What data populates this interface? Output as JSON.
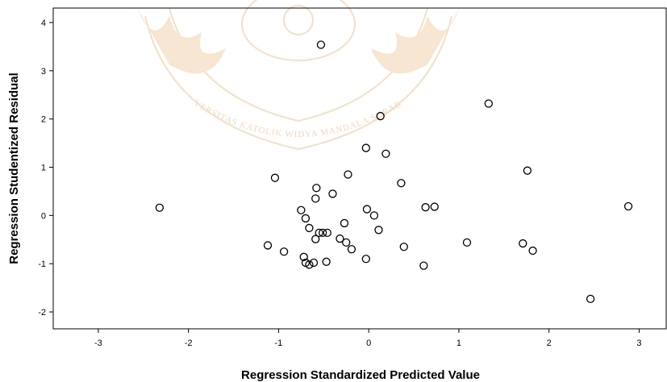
{
  "chart_data": {
    "type": "scatter",
    "title": "",
    "xlabel": "Regression Standardized Predicted Value",
    "ylabel": "Regression Studentized Residual",
    "xlim": [
      -3.5,
      3.3
    ],
    "ylim": [
      -2.35,
      4.3
    ],
    "x_ticks": [
      -3,
      -2,
      -1,
      0,
      1,
      2,
      3
    ],
    "y_ticks": [
      -2,
      -1,
      0,
      1,
      2,
      3,
      4
    ],
    "grid": false,
    "legend": "none",
    "marker": "open-circle",
    "watermark_text": "UNIVERSITAS KATOLIK WIDYA MANDALA SURABAYA",
    "points": [
      [
        -2.32,
        0.16
      ],
      [
        -1.12,
        -0.62
      ],
      [
        -1.04,
        0.78
      ],
      [
        -0.94,
        -0.75
      ],
      [
        -0.75,
        0.11
      ],
      [
        -0.72,
        -0.86
      ],
      [
        -0.7,
        -0.06
      ],
      [
        -0.7,
        -0.98
      ],
      [
        -0.66,
        -1.02
      ],
      [
        -0.66,
        -0.26
      ],
      [
        -0.61,
        -0.98
      ],
      [
        -0.59,
        -0.49
      ],
      [
        -0.59,
        0.35
      ],
      [
        -0.58,
        0.57
      ],
      [
        -0.55,
        -0.36
      ],
      [
        -0.53,
        3.54
      ],
      [
        -0.51,
        -0.36
      ],
      [
        -0.47,
        -0.96
      ],
      [
        -0.46,
        -0.36
      ],
      [
        -0.4,
        0.45
      ],
      [
        -0.32,
        -0.48
      ],
      [
        -0.27,
        -0.16
      ],
      [
        -0.25,
        -0.56
      ],
      [
        -0.23,
        0.85
      ],
      [
        -0.19,
        -0.7
      ],
      [
        -0.03,
        -0.9
      ],
      [
        -0.03,
        1.4
      ],
      [
        -0.02,
        0.13
      ],
      [
        0.06,
        0.0
      ],
      [
        0.11,
        -0.3
      ],
      [
        0.13,
        2.06
      ],
      [
        0.19,
        1.28
      ],
      [
        0.36,
        0.67
      ],
      [
        0.39,
        -0.65
      ],
      [
        0.61,
        -1.04
      ],
      [
        0.63,
        0.17
      ],
      [
        0.73,
        0.18
      ],
      [
        1.09,
        -0.56
      ],
      [
        1.33,
        2.32
      ],
      [
        1.71,
        -0.58
      ],
      [
        1.76,
        0.93
      ],
      [
        1.82,
        -0.73
      ],
      [
        2.46,
        -1.73
      ],
      [
        2.88,
        0.19
      ]
    ]
  }
}
